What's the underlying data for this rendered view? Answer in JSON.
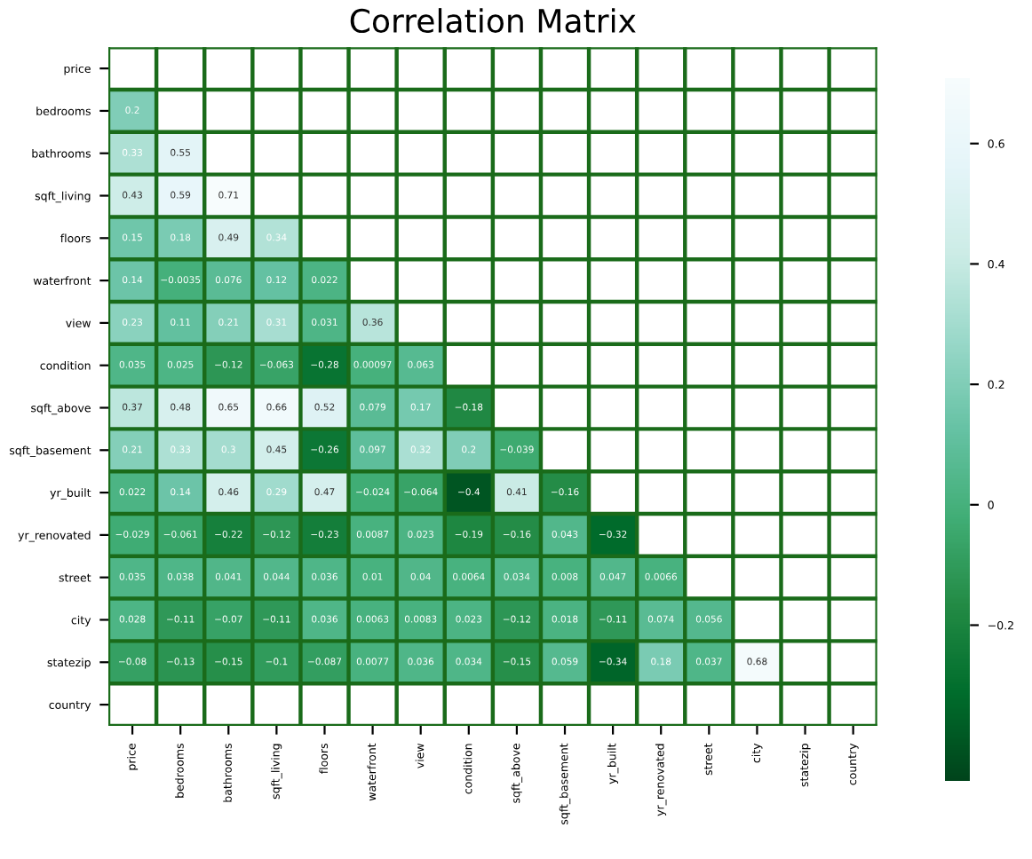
{
  "chart_data": {
    "type": "heatmap",
    "title": "Correlation Matrix",
    "categories": [
      "price",
      "bedrooms",
      "bathrooms",
      "sqft_living",
      "floors",
      "waterfront",
      "view",
      "condition",
      "sqft_above",
      "sqft_basement",
      "yr_built",
      "yr_renovated",
      "street",
      "city",
      "statezip",
      "country"
    ],
    "y_categories": [
      "price",
      "bedrooms",
      "bathrooms",
      "sqft_living",
      "floors",
      "waterfront",
      "view",
      "condition",
      "sqft_above",
      "sqft_basement",
      "yr_built",
      "yr_renovated",
      "street",
      "city",
      "statezip",
      "country"
    ],
    "cells": [
      [
        null,
        null,
        null,
        null,
        null,
        null,
        null,
        null,
        null,
        null,
        null,
        null,
        null,
        null,
        null,
        null
      ],
      [
        0.2,
        null,
        null,
        null,
        null,
        null,
        null,
        null,
        null,
        null,
        null,
        null,
        null,
        null,
        null,
        null
      ],
      [
        0.33,
        0.55,
        null,
        null,
        null,
        null,
        null,
        null,
        null,
        null,
        null,
        null,
        null,
        null,
        null,
        null
      ],
      [
        0.43,
        0.59,
        0.71,
        null,
        null,
        null,
        null,
        null,
        null,
        null,
        null,
        null,
        null,
        null,
        null,
        null
      ],
      [
        0.15,
        0.18,
        0.49,
        0.34,
        null,
        null,
        null,
        null,
        null,
        null,
        null,
        null,
        null,
        null,
        null,
        null
      ],
      [
        0.14,
        -0.0035,
        0.076,
        0.12,
        0.022,
        null,
        null,
        null,
        null,
        null,
        null,
        null,
        null,
        null,
        null,
        null
      ],
      [
        0.23,
        0.11,
        0.21,
        0.31,
        0.031,
        0.36,
        null,
        null,
        null,
        null,
        null,
        null,
        null,
        null,
        null,
        null
      ],
      [
        0.035,
        0.025,
        -0.12,
        -0.063,
        -0.28,
        0.00097,
        0.063,
        null,
        null,
        null,
        null,
        null,
        null,
        null,
        null,
        null
      ],
      [
        0.37,
        0.48,
        0.65,
        0.66,
        0.52,
        0.079,
        0.17,
        -0.18,
        null,
        null,
        null,
        null,
        null,
        null,
        null,
        null
      ],
      [
        0.21,
        0.33,
        0.3,
        0.45,
        -0.26,
        0.097,
        0.32,
        0.2,
        -0.039,
        null,
        null,
        null,
        null,
        null,
        null,
        null
      ],
      [
        0.022,
        0.14,
        0.46,
        0.29,
        0.47,
        -0.024,
        -0.064,
        -0.4,
        0.41,
        -0.16,
        null,
        null,
        null,
        null,
        null,
        null
      ],
      [
        -0.029,
        -0.061,
        -0.22,
        -0.12,
        -0.23,
        0.0087,
        0.023,
        -0.19,
        -0.16,
        0.043,
        -0.32,
        null,
        null,
        null,
        null,
        null
      ],
      [
        0.035,
        0.038,
        0.041,
        0.044,
        0.036,
        0.01,
        0.04,
        0.0064,
        0.034,
        0.008,
        0.047,
        0.0066,
        null,
        null,
        null,
        null
      ],
      [
        0.028,
        -0.11,
        -0.07,
        -0.11,
        0.036,
        0.0063,
        0.0083,
        0.023,
        -0.12,
        0.018,
        -0.11,
        0.074,
        0.056,
        null,
        null,
        null
      ],
      [
        -0.08,
        -0.13,
        -0.15,
        -0.1,
        -0.087,
        0.0077,
        0.036,
        0.034,
        -0.15,
        0.059,
        -0.34,
        0.18,
        0.037,
        0.68,
        null,
        null
      ],
      [
        null,
        null,
        null,
        null,
        null,
        null,
        null,
        null,
        null,
        null,
        null,
        null,
        null,
        null,
        null,
        null
      ]
    ],
    "clim": [
      -0.46,
      0.71
    ],
    "cticks": [
      -0.2,
      0.0,
      0.2,
      0.4,
      0.6
    ],
    "data_labels": true,
    "grid": true
  }
}
